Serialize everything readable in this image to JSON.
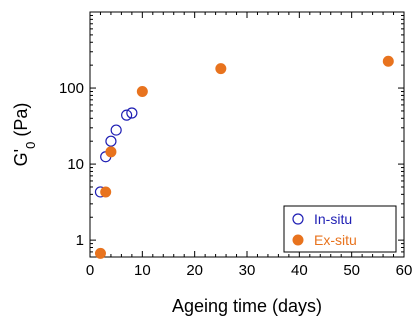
{
  "chart_data": {
    "type": "scatter",
    "xlabel": "Ageing time (days)",
    "ylabel_main": "G'",
    "ylabel_sub": "0",
    "ylabel_unit": " (Pa)",
    "xlim": [
      0,
      60
    ],
    "ylim": [
      0.6,
      1000
    ],
    "yscale": "log",
    "xticks": [
      0,
      10,
      20,
      30,
      40,
      50,
      60
    ],
    "xtick_labels": [
      "0",
      "10",
      "20",
      "30",
      "40",
      "50",
      "60"
    ],
    "yticks": [
      1,
      10,
      100
    ],
    "ytick_labels": [
      "1",
      "10",
      "100"
    ],
    "legend_position": "bottom-right",
    "series": [
      {
        "name": "In-situ",
        "marker": "open-circle",
        "color": "#1f1fb4",
        "x": [
          2,
          3,
          4,
          5,
          7,
          8
        ],
        "y": [
          4.3,
          12.5,
          20,
          28,
          44,
          47
        ]
      },
      {
        "name": "Ex-situ",
        "marker": "filled-circle",
        "color": "#e8731e",
        "x": [
          2,
          3,
          4,
          10,
          25,
          57
        ],
        "y": [
          0.67,
          4.3,
          14.5,
          90,
          180,
          225
        ]
      }
    ]
  }
}
